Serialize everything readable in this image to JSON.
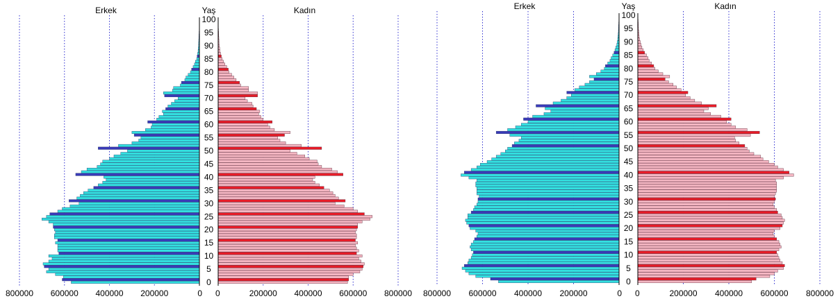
{
  "chart_data": [
    {
      "type": "bar",
      "orientation": "horizontal",
      "subtype": "population-pyramid",
      "center_label": "Yaş",
      "left_title": "Erkek",
      "right_title": "Kadın",
      "x_ticks": [
        "800000",
        "600000",
        "400000",
        "200000",
        "0",
        "0",
        "200000",
        "400000",
        "600000",
        "800000"
      ],
      "xlim": [
        0,
        800000
      ],
      "y_ticks": [
        "0",
        "5",
        "10",
        "15",
        "20",
        "25",
        "30",
        "35",
        "40",
        "45",
        "50",
        "55",
        "60",
        "65",
        "70",
        "75",
        "80",
        "85",
        "90",
        "95",
        "100"
      ],
      "grid": "vertical dotted",
      "series": [
        {
          "name": "Erkek",
          "color": "#33e0e0",
          "highlight_color": "#3a3ab8",
          "values": [
            570000,
            610000,
            605000,
            640000,
            680000,
            670000,
            690000,
            695000,
            670000,
            655000,
            670000,
            625000,
            630000,
            630000,
            630000,
            640000,
            630000,
            645000,
            645000,
            640000,
            645000,
            650000,
            650000,
            670000,
            700000,
            680000,
            665000,
            630000,
            610000,
            575000,
            535000,
            580000,
            545000,
            530000,
            515000,
            495000,
            470000,
            450000,
            430000,
            415000,
            425000,
            550000,
            525000,
            500000,
            455000,
            440000,
            430000,
            400000,
            380000,
            350000,
            320000,
            450000,
            360000,
            300000,
            270000,
            260000,
            290000,
            300000,
            240000,
            215000,
            210000,
            230000,
            190000,
            180000,
            160000,
            165000,
            150000,
            140000,
            125000,
            110000,
            95000,
            155000,
            160000,
            120000,
            115000,
            85000,
            80000,
            65000,
            60000,
            50000,
            40000,
            35000,
            28000,
            22000,
            18000,
            12000,
            10000,
            8000,
            6000,
            5000,
            4000,
            3500,
            3000,
            2500,
            2000,
            1500,
            1000,
            800,
            500,
            300,
            200
          ]
        },
        {
          "name": "Kadın",
          "color": "#f4b6c2",
          "highlight_color": "#e81c28",
          "values": [
            575000,
            580000,
            580000,
            600000,
            630000,
            640000,
            645000,
            650000,
            635000,
            625000,
            640000,
            615000,
            625000,
            615000,
            610000,
            620000,
            610000,
            615000,
            615000,
            610000,
            615000,
            620000,
            620000,
            640000,
            675000,
            685000,
            650000,
            620000,
            600000,
            560000,
            520000,
            565000,
            535000,
            520000,
            510000,
            495000,
            470000,
            450000,
            430000,
            420000,
            430000,
            555000,
            530000,
            505000,
            460000,
            445000,
            440000,
            405000,
            385000,
            350000,
            320000,
            460000,
            370000,
            300000,
            275000,
            265000,
            295000,
            320000,
            250000,
            230000,
            220000,
            240000,
            200000,
            190000,
            180000,
            185000,
            170000,
            155000,
            150000,
            130000,
            120000,
            175000,
            175000,
            135000,
            135000,
            100000,
            95000,
            80000,
            70000,
            60000,
            48000,
            45000,
            38000,
            30000,
            24000,
            18000,
            14000,
            11000,
            8000,
            7000,
            5000,
            4000,
            3500,
            3000,
            2500,
            2000,
            1500,
            1000,
            800,
            500,
            300
          ]
        }
      ],
      "highlight_ages": [
        1,
        6,
        11,
        16,
        21,
        26,
        31,
        36,
        41,
        51,
        56,
        61,
        66,
        71,
        76,
        81,
        86
      ]
    },
    {
      "type": "bar",
      "orientation": "horizontal",
      "subtype": "population-pyramid",
      "center_label": "Yaş",
      "left_title": "Erkek",
      "right_title": "Kadın",
      "x_ticks": [
        "800000",
        "600000",
        "400000",
        "200000",
        "0",
        "0",
        "200000",
        "400000",
        "600000",
        "800000"
      ],
      "xlim": [
        0,
        800000
      ],
      "y_ticks": [
        "0",
        "5",
        "10",
        "15",
        "20",
        "25",
        "30",
        "35",
        "40",
        "45",
        "50",
        "55",
        "60",
        "65",
        "70",
        "75",
        "80",
        "85",
        "90",
        "95",
        "100"
      ],
      "grid": "vertical dotted",
      "series": [
        {
          "name": "Erkek",
          "color": "#33e0e0",
          "highlight_color": "#3a3ab8",
          "values": [
            530000,
            565000,
            630000,
            660000,
            675000,
            690000,
            680000,
            665000,
            660000,
            650000,
            645000,
            640000,
            650000,
            655000,
            650000,
            640000,
            635000,
            625000,
            620000,
            630000,
            655000,
            660000,
            670000,
            675000,
            665000,
            665000,
            650000,
            640000,
            635000,
            625000,
            620000,
            620000,
            615000,
            625000,
            625000,
            625000,
            630000,
            630000,
            625000,
            660000,
            695000,
            680000,
            650000,
            625000,
            610000,
            580000,
            560000,
            540000,
            520000,
            500000,
            490000,
            470000,
            460000,
            440000,
            430000,
            480000,
            540000,
            490000,
            455000,
            430000,
            400000,
            420000,
            380000,
            330000,
            300000,
            325000,
            365000,
            290000,
            255000,
            230000,
            210000,
            230000,
            195000,
            175000,
            150000,
            130000,
            110000,
            130000,
            100000,
            80000,
            65000,
            60000,
            50000,
            40000,
            35000,
            28000,
            22000,
            18000,
            14000,
            10000,
            8000,
            6000,
            5000,
            4000,
            3000,
            2500,
            2000,
            1500,
            1000,
            500,
            300
          ]
        },
        {
          "name": "Kadın",
          "color": "#f4b6c2",
          "highlight_color": "#e81c28",
          "values": [
            500000,
            520000,
            580000,
            600000,
            615000,
            640000,
            645000,
            635000,
            625000,
            620000,
            615000,
            610000,
            620000,
            630000,
            625000,
            620000,
            610000,
            600000,
            595000,
            600000,
            625000,
            635000,
            640000,
            645000,
            635000,
            630000,
            615000,
            610000,
            600000,
            595000,
            600000,
            605000,
            600000,
            605000,
            610000,
            610000,
            610000,
            610000,
            605000,
            640000,
            685000,
            665000,
            640000,
            615000,
            600000,
            575000,
            550000,
            540000,
            510000,
            490000,
            480000,
            470000,
            445000,
            430000,
            425000,
            495000,
            535000,
            480000,
            430000,
            410000,
            390000,
            410000,
            365000,
            320000,
            290000,
            310000,
            345000,
            280000,
            250000,
            230000,
            210000,
            220000,
            190000,
            170000,
            155000,
            135000,
            120000,
            140000,
            110000,
            90000,
            75000,
            70000,
            60000,
            50000,
            45000,
            38000,
            30000,
            24000,
            18000,
            14000,
            11000,
            8000,
            6000,
            5000,
            4000,
            3000,
            2500,
            2000,
            1500,
            1000,
            500
          ]
        }
      ],
      "highlight_ages": [
        1,
        6,
        11,
        16,
        21,
        26,
        31,
        41,
        51,
        56,
        61,
        66,
        71,
        76,
        81,
        86
      ]
    }
  ]
}
